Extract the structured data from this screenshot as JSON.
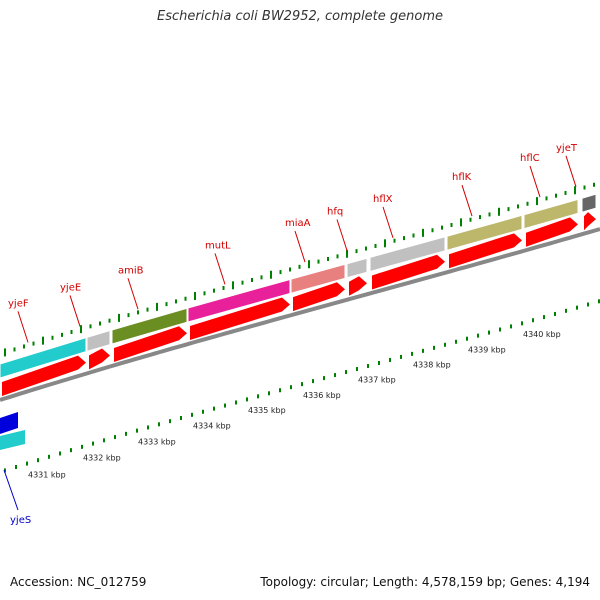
{
  "header": {
    "title": "Escherichia coli BW2952, complete genome"
  },
  "footer": {
    "accession": "Accession: NC_012759",
    "summary": "Topology: circular; Length: 4,578,159 bp; Genes: 4,194"
  },
  "colors": {
    "gene_label": "#d20000",
    "reverse_label": "#0000c8",
    "arrow_red": "#ff0000",
    "backbone": "#888888",
    "tick_green": "#008000",
    "bar_cyan": "#22cccc",
    "bar_gray": "#c0c0c0",
    "bar_olive": "#6b8e23",
    "bar_magenta": "#e8209a",
    "bar_salmon": "#e88080",
    "bar_khaki": "#bdb76b",
    "bar_dark": "#666666",
    "bar_blue": "#0000dd"
  },
  "genes": [
    {
      "name": "yjeF",
      "color": "bar_cyan"
    },
    {
      "name": "yjeE",
      "color": "bar_gray"
    },
    {
      "name": "amiB",
      "color": "bar_olive"
    },
    {
      "name": "mutL",
      "color": "bar_magenta"
    },
    {
      "name": "miaA",
      "color": "bar_salmon"
    },
    {
      "name": "hfq",
      "color": "bar_gray"
    },
    {
      "name": "hflX",
      "color": "bar_gray"
    },
    {
      "name": "hflK",
      "color": "bar_khaki"
    },
    {
      "name": "hflC",
      "color": "bar_khaki"
    },
    {
      "name": "yjeT",
      "color": "bar_dark"
    }
  ],
  "reverse_genes": [
    {
      "name": "yjeS",
      "color": "bar_blue"
    }
  ],
  "kbp_labels": [
    "4331 kbp",
    "4332 kbp",
    "4333 kbp",
    "4334 kbp",
    "4335 kbp",
    "4336 kbp",
    "4337 kbp",
    "4338 kbp",
    "4339 kbp",
    "4340 kbp"
  ]
}
